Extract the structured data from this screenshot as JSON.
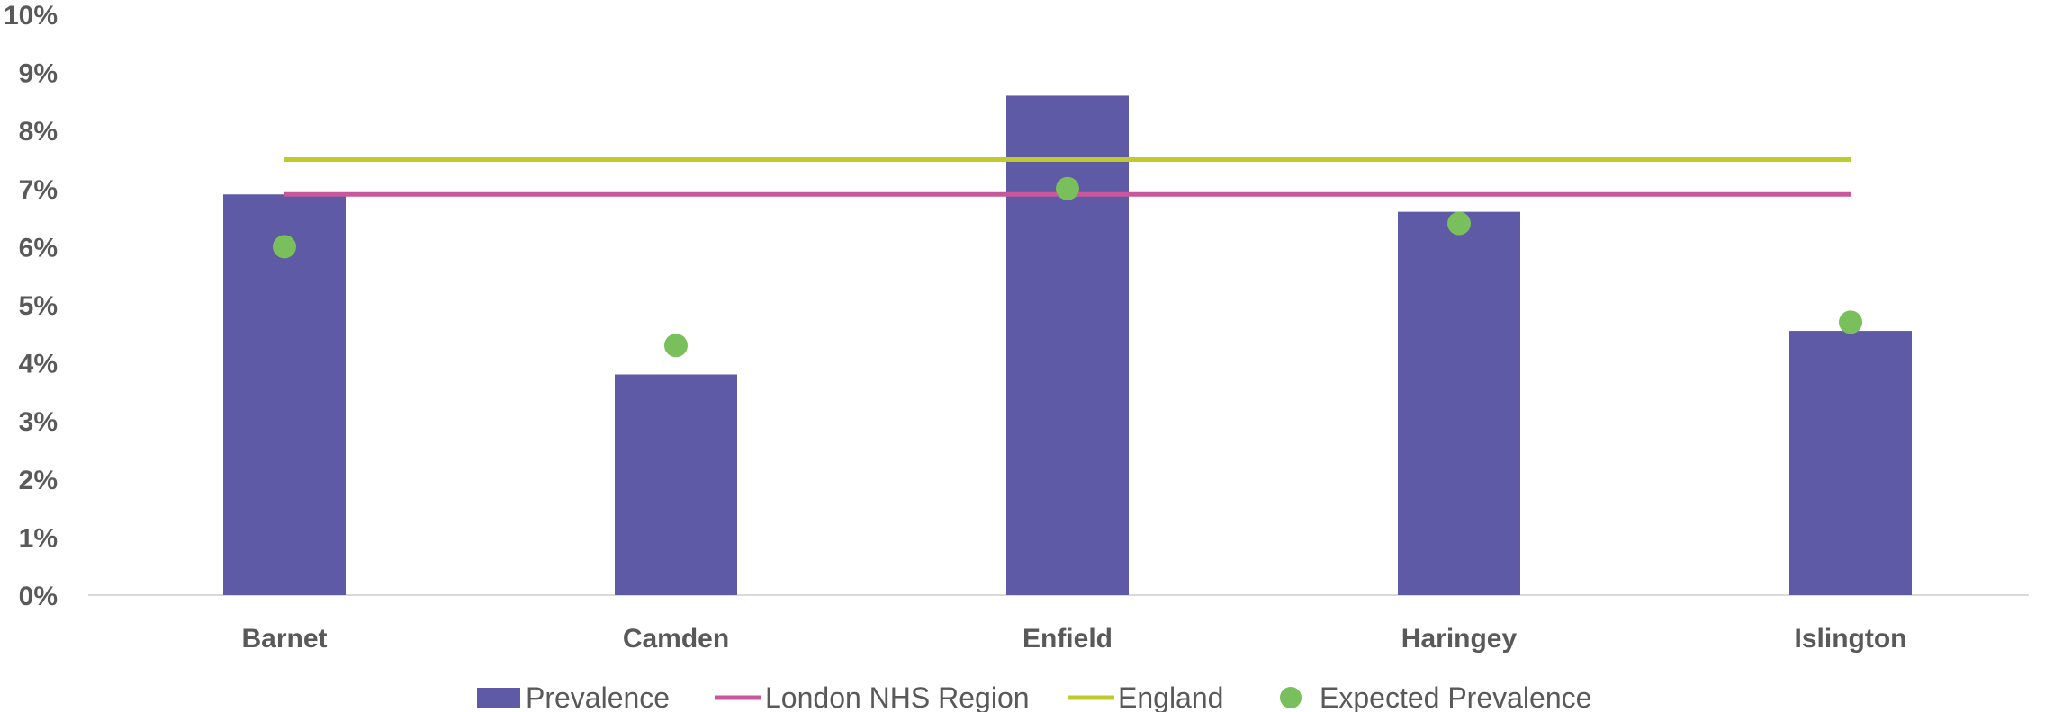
{
  "chart_data": {
    "type": "bar",
    "categories": [
      "Barnet",
      "Camden",
      "Enfield",
      "Haringey",
      "Islington"
    ],
    "series": [
      {
        "name": "Prevalence",
        "kind": "bar",
        "color": "#5E5AA6",
        "values": [
          6.9,
          3.8,
          8.6,
          6.6,
          4.55
        ]
      },
      {
        "name": "London NHS Region",
        "kind": "line",
        "color": "#C9579C",
        "values": [
          6.9,
          6.9,
          6.9,
          6.9,
          6.9
        ]
      },
      {
        "name": "England",
        "kind": "line",
        "color": "#BFCB2A",
        "values": [
          7.5,
          7.5,
          7.5,
          7.5,
          7.5
        ]
      },
      {
        "name": "Expected Prevalence",
        "kind": "marker",
        "color": "#79BF5C",
        "values": [
          6.0,
          4.3,
          7.0,
          6.4,
          4.7
        ]
      }
    ],
    "ylim": [
      0,
      10
    ],
    "yticks": [
      "0%",
      "1%",
      "2%",
      "3%",
      "4%",
      "5%",
      "6%",
      "7%",
      "8%",
      "9%",
      "10%"
    ],
    "title": "",
    "xlabel": "",
    "ylabel": "",
    "grid": false,
    "legend": "bottom"
  }
}
